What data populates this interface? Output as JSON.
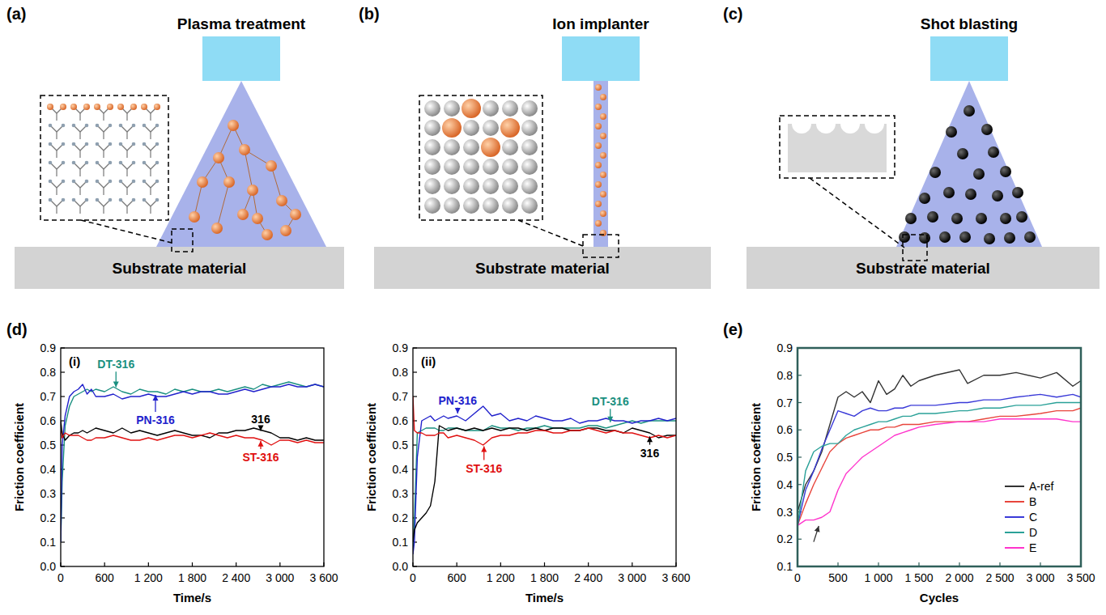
{
  "panels": [
    "(a)",
    "(b)",
    "(c)",
    "(d)",
    "(e)"
  ],
  "diagrams": [
    {
      "title": "Plasma treatment",
      "substrate": "Substrate material"
    },
    {
      "title": "Ion implanter",
      "substrate": "Substrate material"
    },
    {
      "title": "Shot blasting",
      "substrate": "Substrate material"
    }
  ],
  "chart_data": [
    {
      "type": "line",
      "title": "(i)",
      "x_label": "Time/s",
      "y_label": "Friction coefficient",
      "x": [
        0,
        20,
        60,
        120,
        180,
        240,
        300,
        360,
        420,
        480,
        600,
        720,
        840,
        960,
        1080,
        1200,
        1320,
        1440,
        1560,
        1680,
        1800,
        1920,
        2040,
        2160,
        2280,
        2400,
        2520,
        2640,
        2760,
        2880,
        3000,
        3120,
        3240,
        3360,
        3480,
        3600
      ],
      "series": [
        {
          "name": "DT-316",
          "color": "#1a9080",
          "values": [
            0.1,
            0.35,
            0.58,
            0.66,
            0.7,
            0.71,
            0.72,
            0.73,
            0.72,
            0.73,
            0.72,
            0.74,
            0.72,
            0.71,
            0.73,
            0.72,
            0.72,
            0.71,
            0.73,
            0.72,
            0.73,
            0.72,
            0.72,
            0.73,
            0.72,
            0.73,
            0.74,
            0.73,
            0.75,
            0.74,
            0.75,
            0.76,
            0.75,
            0.74,
            0.75,
            0.74
          ]
        },
        {
          "name": "PN-316",
          "color": "#2222cc",
          "values": [
            0.1,
            0.5,
            0.62,
            0.7,
            0.72,
            0.73,
            0.75,
            0.71,
            0.73,
            0.7,
            0.7,
            0.71,
            0.69,
            0.7,
            0.7,
            0.71,
            0.7,
            0.7,
            0.71,
            0.72,
            0.71,
            0.72,
            0.72,
            0.71,
            0.71,
            0.72,
            0.73,
            0.72,
            0.73,
            0.74,
            0.74,
            0.75,
            0.74,
            0.74,
            0.75,
            0.74
          ]
        },
        {
          "name": "316",
          "color": "#000000",
          "values": [
            0.6,
            0.55,
            0.52,
            0.54,
            0.55,
            0.55,
            0.56,
            0.55,
            0.56,
            0.57,
            0.56,
            0.55,
            0.57,
            0.55,
            0.56,
            0.55,
            0.54,
            0.55,
            0.56,
            0.55,
            0.54,
            0.54,
            0.53,
            0.55,
            0.55,
            0.56,
            0.56,
            0.57,
            0.56,
            0.55,
            0.53,
            0.53,
            0.52,
            0.53,
            0.52,
            0.52
          ]
        },
        {
          "name": "ST-316",
          "color": "#e01010",
          "values": [
            0.56,
            0.53,
            0.55,
            0.54,
            0.54,
            0.54,
            0.53,
            0.52,
            0.52,
            0.53,
            0.53,
            0.54,
            0.53,
            0.52,
            0.52,
            0.53,
            0.52,
            0.53,
            0.54,
            0.54,
            0.53,
            0.54,
            0.55,
            0.54,
            0.53,
            0.54,
            0.53,
            0.53,
            0.52,
            0.5,
            0.52,
            0.52,
            0.51,
            0.52,
            0.51,
            0.51
          ]
        }
      ],
      "xlim": [
        0,
        3600
      ],
      "xticks": [
        0,
        600,
        {
          "value": 1200,
          "label": "1 200"
        },
        {
          "value": 1800,
          "label": "1 800"
        },
        {
          "value": 2400,
          "label": "2 400"
        },
        {
          "value": 3000,
          "label": "3 000"
        },
        {
          "value": 3600,
          "label": "3 600"
        }
      ],
      "ylim": [
        0,
        0.9
      ],
      "yticks": [
        {
          "value": 0,
          "label": "0.0"
        },
        0.1,
        0.2,
        0.3,
        0.4,
        0.5,
        0.6,
        0.7,
        0.8,
        0.9
      ],
      "grid": false
    },
    {
      "type": "line",
      "title": "(ii)",
      "x_label": "Time/s",
      "y_label": "Friction coefficient",
      "x": [
        0,
        20,
        60,
        120,
        180,
        240,
        300,
        360,
        420,
        480,
        600,
        720,
        840,
        960,
        1080,
        1200,
        1320,
        1440,
        1560,
        1680,
        1800,
        1920,
        2040,
        2160,
        2280,
        2400,
        2520,
        2640,
        2760,
        2880,
        3000,
        3120,
        3240,
        3360,
        3480,
        3600
      ],
      "series": [
        {
          "name": "DT-316",
          "color": "#1a9080",
          "values": [
            0.06,
            0.2,
            0.55,
            0.56,
            0.57,
            0.57,
            0.57,
            0.56,
            0.56,
            0.57,
            0.57,
            0.56,
            0.56,
            0.56,
            0.58,
            0.57,
            0.57,
            0.56,
            0.57,
            0.57,
            0.58,
            0.57,
            0.57,
            0.57,
            0.57,
            0.58,
            0.58,
            0.57,
            0.58,
            0.59,
            0.6,
            0.59,
            0.6,
            0.6,
            0.6,
            0.6
          ]
        },
        {
          "name": "PN-316",
          "color": "#2222cc",
          "values": [
            0.05,
            0.1,
            0.45,
            0.6,
            0.61,
            0.62,
            0.6,
            0.61,
            0.62,
            0.61,
            0.62,
            0.6,
            0.63,
            0.66,
            0.62,
            0.63,
            0.6,
            0.61,
            0.6,
            0.62,
            0.61,
            0.6,
            0.6,
            0.61,
            0.59,
            0.6,
            0.6,
            0.61,
            0.6,
            0.6,
            0.59,
            0.6,
            0.6,
            0.61,
            0.6,
            0.61
          ]
        },
        {
          "name": "316",
          "color": "#000000",
          "values": [
            0.1,
            0.15,
            0.18,
            0.2,
            0.22,
            0.25,
            0.35,
            0.58,
            0.57,
            0.56,
            0.57,
            0.56,
            0.57,
            0.56,
            0.57,
            0.56,
            0.57,
            0.57,
            0.56,
            0.57,
            0.56,
            0.57,
            0.57,
            0.56,
            0.56,
            0.57,
            0.57,
            0.56,
            0.56,
            0.55,
            0.57,
            0.56,
            0.55,
            0.53,
            0.54,
            0.54
          ]
        },
        {
          "name": "ST-316",
          "color": "#e01010",
          "values": [
            0.7,
            0.56,
            0.55,
            0.55,
            0.54,
            0.54,
            0.54,
            0.55,
            0.55,
            0.53,
            0.54,
            0.53,
            0.52,
            0.5,
            0.53,
            0.54,
            0.54,
            0.55,
            0.55,
            0.56,
            0.56,
            0.55,
            0.55,
            0.56,
            0.56,
            0.57,
            0.56,
            0.55,
            0.56,
            0.55,
            0.55,
            0.54,
            0.53,
            0.54,
            0.53,
            0.54
          ]
        }
      ],
      "xlim": [
        0,
        3600
      ],
      "xticks": [
        0,
        600,
        {
          "value": 1200,
          "label": "1 200"
        },
        {
          "value": 1800,
          "label": "1 800"
        },
        {
          "value": 2400,
          "label": "2 400"
        },
        {
          "value": 3000,
          "label": "3 000"
        },
        {
          "value": 3600,
          "label": "3 600"
        }
      ],
      "ylim": [
        0,
        0.9
      ],
      "yticks": [
        {
          "value": 0,
          "label": "0.0"
        },
        0.1,
        0.2,
        0.3,
        0.4,
        0.5,
        0.6,
        0.7,
        0.8,
        0.9
      ],
      "grid": false
    },
    {
      "type": "line",
      "x_label": "Cycles",
      "y_label": "Friction coefficient",
      "x": [
        0,
        100,
        200,
        300,
        400,
        500,
        600,
        700,
        800,
        900,
        1000,
        1100,
        1200,
        1300,
        1400,
        1500,
        1700,
        2000,
        2100,
        2300,
        2500,
        2700,
        3000,
        3200,
        3400,
        3500
      ],
      "series": [
        {
          "name": "A-ref",
          "color": "#333333",
          "values": [
            0.3,
            0.4,
            0.45,
            0.52,
            0.62,
            0.72,
            0.74,
            0.72,
            0.74,
            0.7,
            0.78,
            0.73,
            0.75,
            0.8,
            0.76,
            0.78,
            0.8,
            0.82,
            0.77,
            0.8,
            0.8,
            0.81,
            0.79,
            0.81,
            0.76,
            0.78
          ]
        },
        {
          "name": "B",
          "color": "#e8453c",
          "values": [
            0.25,
            0.33,
            0.4,
            0.46,
            0.52,
            0.55,
            0.57,
            0.58,
            0.59,
            0.6,
            0.6,
            0.61,
            0.61,
            0.62,
            0.62,
            0.62,
            0.63,
            0.63,
            0.63,
            0.64,
            0.65,
            0.65,
            0.66,
            0.67,
            0.67,
            0.68
          ]
        },
        {
          "name": "C",
          "color": "#3a3ad8",
          "values": [
            0.25,
            0.38,
            0.45,
            0.53,
            0.6,
            0.67,
            0.66,
            0.65,
            0.67,
            0.68,
            0.67,
            0.67,
            0.68,
            0.68,
            0.69,
            0.69,
            0.69,
            0.7,
            0.7,
            0.71,
            0.71,
            0.72,
            0.73,
            0.72,
            0.73,
            0.72
          ]
        },
        {
          "name": "D",
          "color": "#2aa198",
          "values": [
            0.25,
            0.45,
            0.52,
            0.54,
            0.55,
            0.55,
            0.58,
            0.6,
            0.61,
            0.62,
            0.63,
            0.63,
            0.64,
            0.65,
            0.65,
            0.66,
            0.66,
            0.67,
            0.67,
            0.68,
            0.68,
            0.69,
            0.69,
            0.7,
            0.7,
            0.7
          ]
        },
        {
          "name": "E",
          "color": "#ff33cc",
          "values": [
            0.25,
            0.27,
            0.27,
            0.28,
            0.3,
            0.38,
            0.44,
            0.47,
            0.5,
            0.52,
            0.54,
            0.56,
            0.58,
            0.59,
            0.6,
            0.61,
            0.62,
            0.63,
            0.63,
            0.63,
            0.64,
            0.64,
            0.64,
            0.64,
            0.63,
            0.63
          ]
        }
      ],
      "xlim": [
        0,
        3500
      ],
      "xticks": [
        0,
        500,
        {
          "value": 1000,
          "label": "1 000"
        },
        {
          "value": 1500,
          "label": "1 500"
        },
        {
          "value": 2000,
          "label": "2 000"
        },
        {
          "value": 2500,
          "label": "2 500"
        },
        {
          "value": 3000,
          "label": "3 000"
        },
        {
          "value": 3500,
          "label": "3 500"
        }
      ],
      "ylim": [
        0.1,
        0.9
      ],
      "yticks": [
        0.1,
        0.2,
        0.3,
        0.4,
        0.5,
        0.6,
        0.7,
        0.8,
        0.9
      ],
      "grid": false,
      "legend": "lower right"
    }
  ]
}
